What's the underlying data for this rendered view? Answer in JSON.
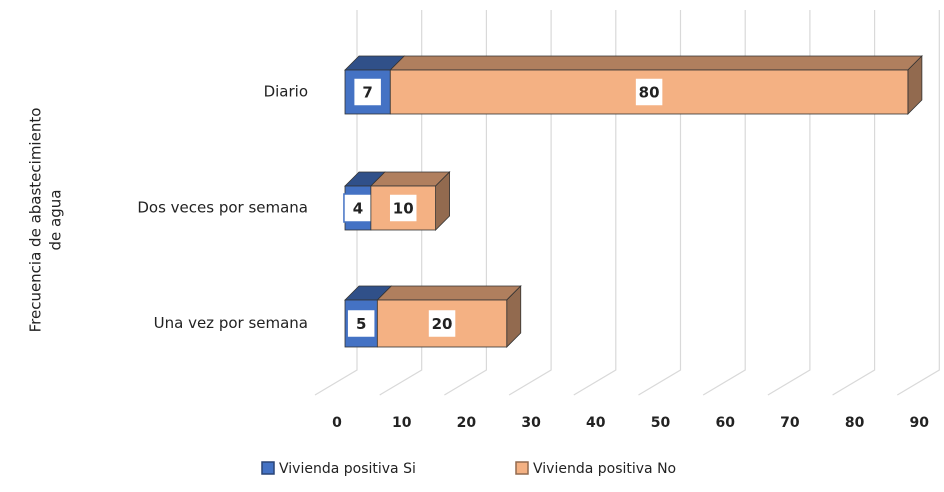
{
  "chart_data": {
    "type": "bar3d_stacked_horizontal",
    "ylabel": [
      "Frecuencia de abastecimiento",
      "de agua"
    ],
    "categories": [
      "Diario",
      "Dos veces por semana",
      "Una vez por semana"
    ],
    "series": [
      {
        "name": "Vivienda positiva Si",
        "color": "#4472c4",
        "values": [
          7,
          4,
          5
        ]
      },
      {
        "name": "Vivienda positiva No",
        "color": "#f4b183",
        "values": [
          80,
          10,
          20
        ]
      }
    ],
    "xlim": [
      0,
      90
    ],
    "xticks": [
      0,
      10,
      20,
      30,
      40,
      50,
      60,
      70,
      80,
      90
    ],
    "grid": true,
    "legend": "bottom"
  }
}
